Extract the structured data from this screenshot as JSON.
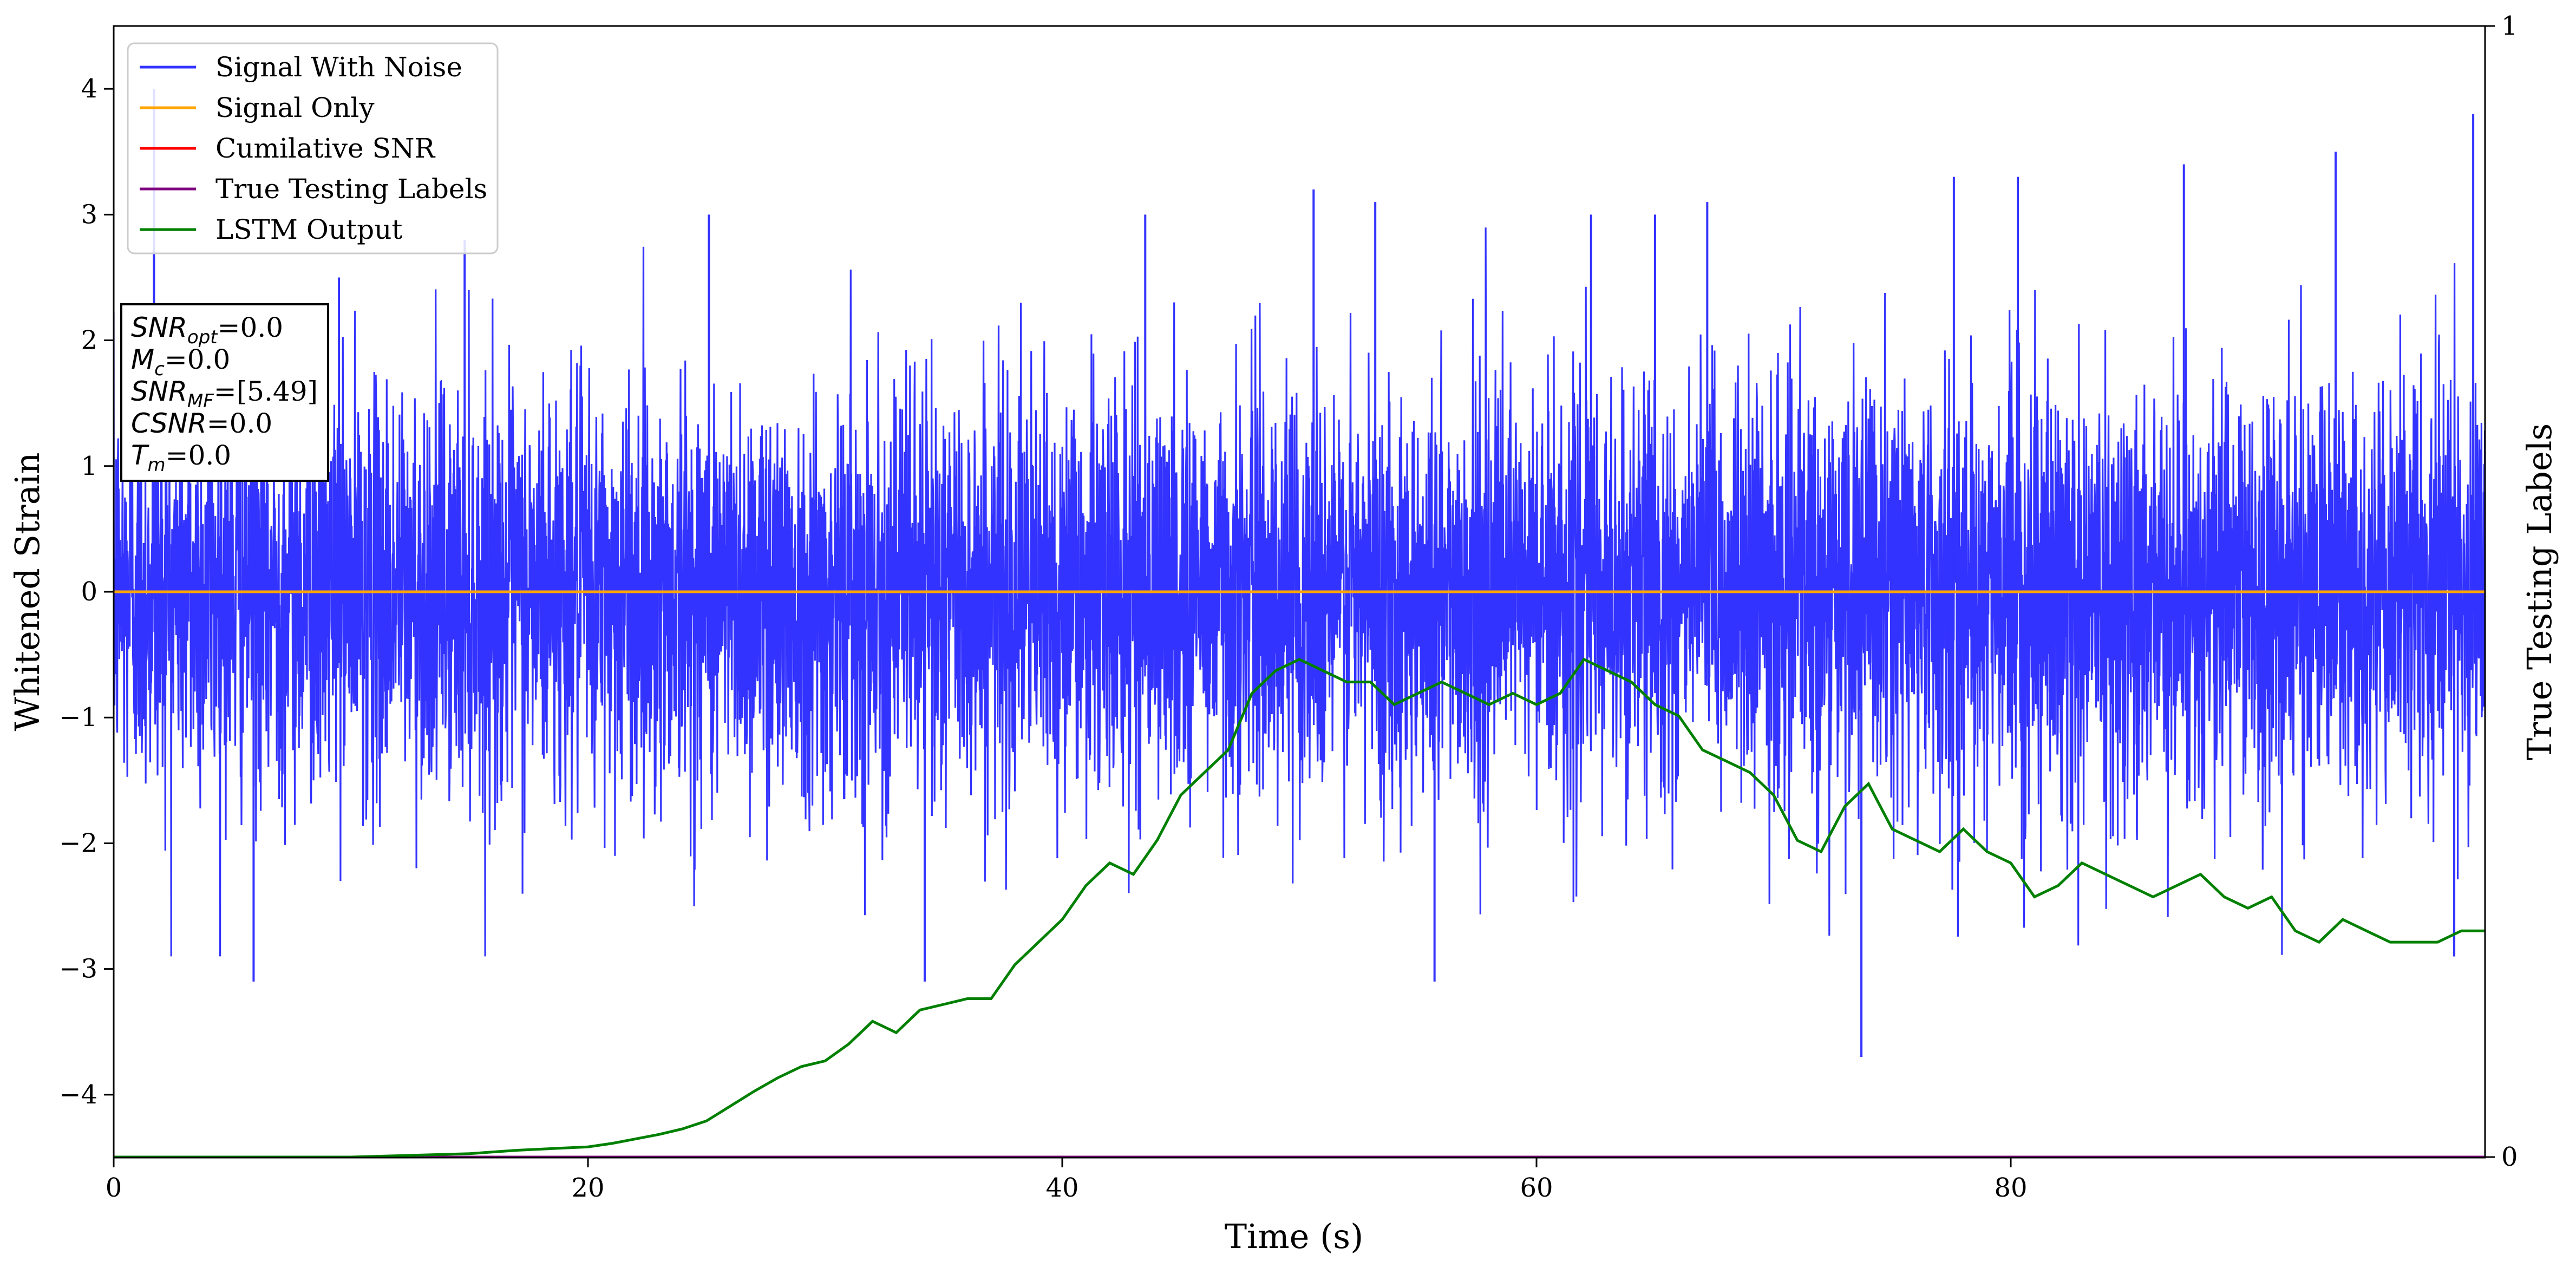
{
  "chart_data": {
    "type": "line",
    "xlabel": "Time (s)",
    "ylabel": "Whitened Strain",
    "y2label": "True Testing Labels",
    "xlim": [
      0,
      100
    ],
    "ylim": [
      -4.5,
      4.5
    ],
    "y2lim": [
      0,
      1
    ],
    "xticks": [
      0,
      20,
      40,
      60,
      80
    ],
    "yticks": [
      -4,
      -3,
      -2,
      -1,
      0,
      1,
      2,
      3,
      4
    ],
    "y2ticks": [
      0,
      1
    ],
    "grid": false,
    "legend_position": "top-left",
    "series": [
      {
        "name": "Signal With Noise",
        "color": "#3333ff",
        "axis": "left",
        "style": "dense noise, std approx 0.8, range approx -3.7 to 3.8",
        "spikes": [
          [
            1.7,
            4.0
          ],
          [
            5.9,
            -3.1
          ],
          [
            9.5,
            2.5
          ],
          [
            14.8,
            2.8
          ],
          [
            25.1,
            3.0
          ],
          [
            34.2,
            -3.1
          ],
          [
            43.5,
            3.0
          ],
          [
            50.6,
            3.2
          ],
          [
            53.2,
            3.1
          ],
          [
            55.7,
            -3.1
          ],
          [
            62.3,
            3.0
          ],
          [
            65.0,
            3.0
          ],
          [
            67.2,
            3.1
          ],
          [
            73.7,
            -3.7
          ],
          [
            77.6,
            3.3
          ],
          [
            80.3,
            3.3
          ],
          [
            87.3,
            3.4
          ],
          [
            93.7,
            3.5
          ],
          [
            98.7,
            -2.9
          ],
          [
            99.5,
            3.8
          ]
        ]
      },
      {
        "name": "Signal Only",
        "color": "#ffa500",
        "axis": "left",
        "x": [
          0,
          100
        ],
        "y": [
          0,
          0
        ]
      },
      {
        "name": "Cumilative SNR",
        "color": "#ff0000",
        "axis": "left",
        "x": [],
        "y": []
      },
      {
        "name": "True Testing Labels",
        "color": "#800080",
        "axis": "right",
        "x": [
          0,
          100
        ],
        "y": [
          0,
          0
        ]
      },
      {
        "name": "LSTM Output",
        "color": "#008000",
        "axis": "right",
        "x": [
          0,
          10,
          15,
          17,
          19,
          20,
          21,
          22,
          23,
          24,
          25,
          26,
          27,
          28,
          29,
          30,
          31,
          32,
          33,
          34,
          35,
          36,
          37,
          38,
          39,
          40,
          41,
          42,
          43,
          44,
          45,
          46,
          47,
          48,
          49,
          50,
          51,
          52,
          53,
          54,
          55,
          56,
          57,
          58,
          59,
          60,
          61,
          62,
          63,
          64,
          65,
          66,
          67,
          68,
          69,
          70,
          71,
          72,
          73,
          74,
          75,
          76,
          77,
          78,
          79,
          80,
          81,
          82,
          83,
          84,
          85,
          86,
          87,
          88,
          89,
          90,
          91,
          92,
          93,
          94,
          95,
          96,
          97,
          98,
          99,
          100
        ],
        "y": [
          0.0,
          0.0,
          0.003,
          0.006,
          0.008,
          0.009,
          0.012,
          0.016,
          0.02,
          0.025,
          0.032,
          0.045,
          0.058,
          0.07,
          0.08,
          0.085,
          0.1,
          0.12,
          0.11,
          0.13,
          0.135,
          0.14,
          0.14,
          0.17,
          0.19,
          0.21,
          0.24,
          0.26,
          0.25,
          0.28,
          0.32,
          0.34,
          0.36,
          0.41,
          0.43,
          0.44,
          0.43,
          0.42,
          0.42,
          0.4,
          0.41,
          0.42,
          0.41,
          0.4,
          0.41,
          0.4,
          0.41,
          0.44,
          0.43,
          0.42,
          0.4,
          0.39,
          0.36,
          0.35,
          0.34,
          0.32,
          0.28,
          0.27,
          0.31,
          0.33,
          0.29,
          0.28,
          0.27,
          0.29,
          0.27,
          0.26,
          0.23,
          0.24,
          0.26,
          0.25,
          0.24,
          0.23,
          0.24,
          0.25,
          0.23,
          0.22,
          0.23,
          0.2,
          0.19,
          0.21,
          0.2,
          0.19,
          0.19,
          0.19,
          0.2,
          0.2
        ]
      }
    ],
    "annotation": {
      "lines": [
        {
          "label": "SNR",
          "sub": "opt",
          "value": "=0.0"
        },
        {
          "label": "M",
          "sub": "c",
          "value": "=0.0"
        },
        {
          "label": "SNR",
          "sub": "MF",
          "value": "=[5.49]"
        },
        {
          "label": "CSNR",
          "sub": "",
          "value": "=0.0"
        },
        {
          "label": "T",
          "sub": "m",
          "value": "=0.0"
        }
      ]
    }
  }
}
